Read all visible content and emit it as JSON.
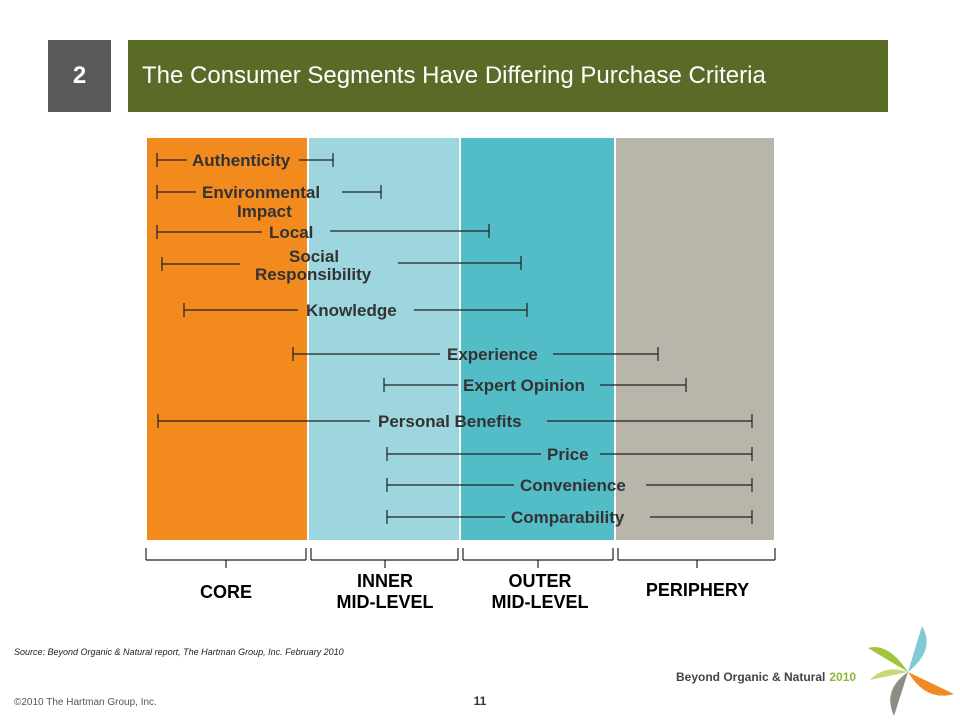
{
  "header": {
    "slide_number": "2",
    "title": "The Consumer Segments Have Differing Purchase Criteria"
  },
  "colors": {
    "title_bar": "#5a6b28",
    "slide_number_box": "#58595b",
    "core": "#f28a1e",
    "inner_mid_level": "#9dd6df",
    "outer_mid_level": "#52bcc7",
    "periphery": "#b8b6aa"
  },
  "segments": [
    {
      "label": "CORE"
    },
    {
      "label": "INNER MID-LEVEL",
      "line1": "INNER",
      "line2": "MID-LEVEL"
    },
    {
      "label": "OUTER MID-LEVEL",
      "line1": "OUTER",
      "line2": "MID-LEVEL"
    },
    {
      "label": "PERIPHERY"
    }
  ],
  "criteria": [
    {
      "name": "Authenticity",
      "from": "CORE",
      "to": "INNER MID-LEVEL"
    },
    {
      "name": "Environmental Impact",
      "line1": "Environmental",
      "line2": "Impact",
      "from": "CORE",
      "to": "INNER MID-LEVEL"
    },
    {
      "name": "Local",
      "from": "CORE",
      "to": "OUTER MID-LEVEL"
    },
    {
      "name": "Social Responsibility",
      "line1": "Social",
      "line2": "Responsibility",
      "from": "CORE",
      "to": "OUTER MID-LEVEL"
    },
    {
      "name": "Knowledge",
      "from": "CORE",
      "to": "OUTER MID-LEVEL"
    },
    {
      "name": "Experience",
      "from": "CORE",
      "to": "PERIPHERY"
    },
    {
      "name": "Expert Opinion",
      "from": "INNER MID-LEVEL",
      "to": "PERIPHERY"
    },
    {
      "name": "Personal Benefits",
      "from": "CORE",
      "to": "PERIPHERY"
    },
    {
      "name": "Price",
      "from": "INNER MID-LEVEL",
      "to": "PERIPHERY"
    },
    {
      "name": "Convenience",
      "from": "INNER MID-LEVEL",
      "to": "PERIPHERY"
    },
    {
      "name": "Comparability",
      "from": "INNER MID-LEVEL",
      "to": "PERIPHERY"
    }
  ],
  "footer": {
    "source": "Source: Beyond Organic & Natural report, The Hartman Group, Inc. February 2010",
    "copyright": "©2010 The Hartman Group, Inc.",
    "page_number": "11",
    "brand_name": "Beyond Organic & Natural",
    "brand_year": "2010"
  },
  "logo": {
    "icon": "pinwheel-logo-icon"
  }
}
